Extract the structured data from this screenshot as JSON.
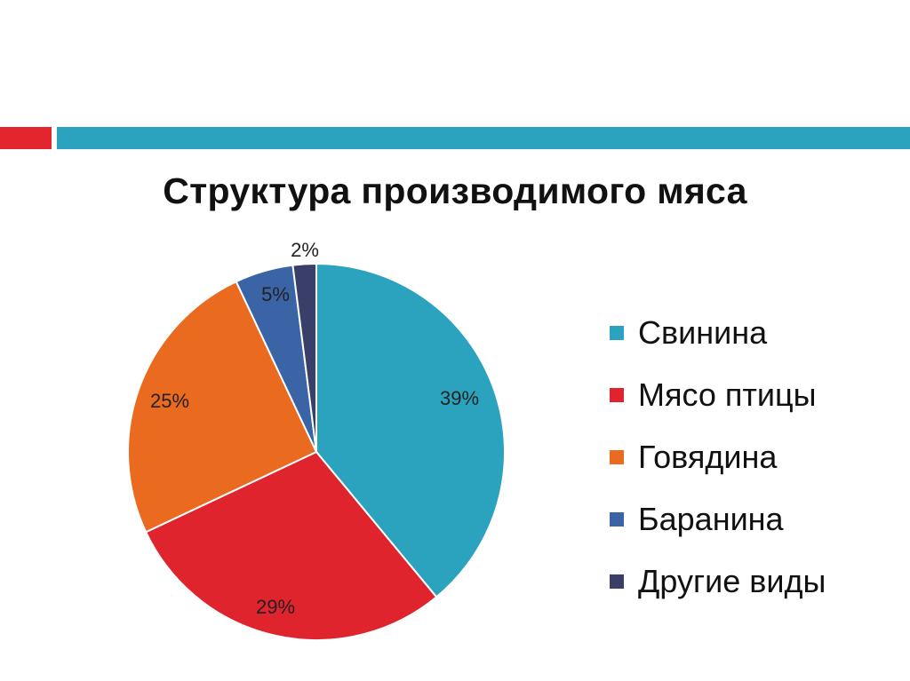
{
  "header": {
    "accent_red": "#E3262E",
    "accent_teal": "#2BA3BE"
  },
  "chart_data": {
    "type": "pie",
    "title": "Структура производимого мяса",
    "slices": [
      {
        "label": "Свинина",
        "value": 39,
        "value_label": "39%",
        "color": "#2BA3BE"
      },
      {
        "label": "Мясо птицы",
        "value": 29,
        "value_label": "29%",
        "color": "#E0242E"
      },
      {
        "label": "Говядина",
        "value": 25,
        "value_label": "25%",
        "color": "#EA6A1F"
      },
      {
        "label": "Баранина",
        "value": 5,
        "value_label": "5%",
        "color": "#3A64A5"
      },
      {
        "label": "Другие виды",
        "value": 2,
        "value_label": "2%",
        "color": "#3A3F69"
      }
    ],
    "legend_position": "right"
  }
}
